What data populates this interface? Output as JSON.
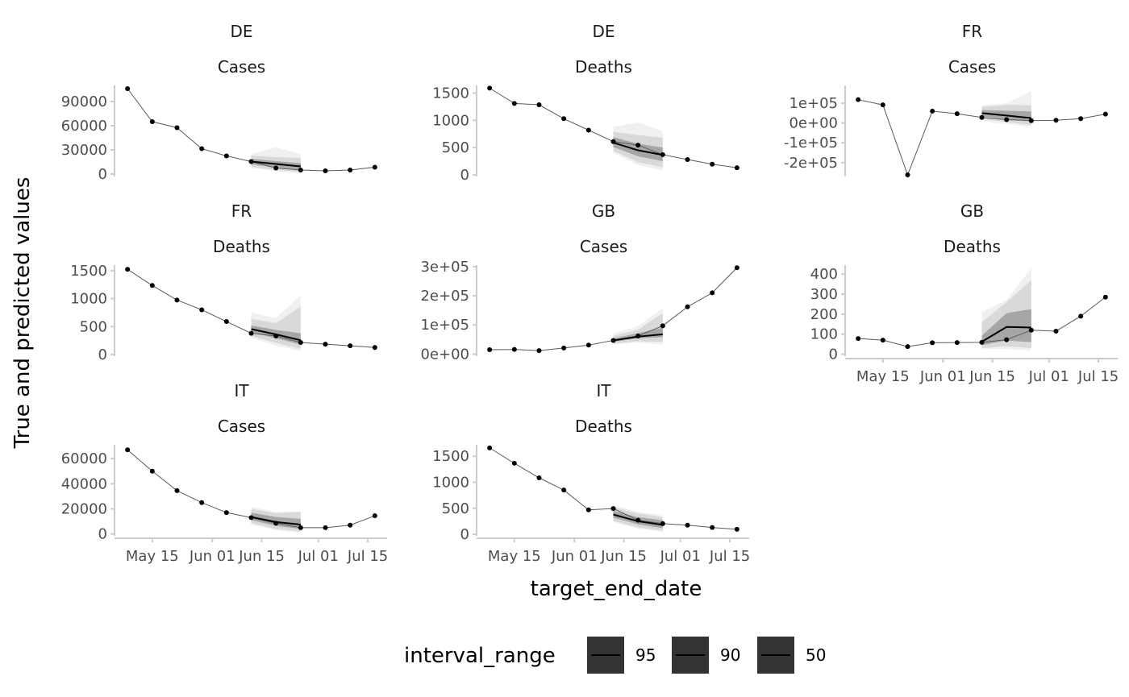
{
  "chart_data": {
    "type": "line",
    "facet_by": [
      "location",
      "target_variable"
    ],
    "xlabel": "target_end_date",
    "ylabel": "True and predicted values",
    "x_ticks": [
      "May 15",
      "Jun 01",
      "Jun 15",
      "Jul 01",
      "Jul 15"
    ],
    "legend": {
      "title": "interval_range",
      "position": "bottom",
      "entries": [
        "95",
        "90",
        "50"
      ],
      "band_colors": [
        "#f0f0f0",
        "#d9d9d9",
        "#a6a6a6"
      ]
    },
    "x_dates": [
      "2021-05-08",
      "2021-05-15",
      "2021-05-22",
      "2021-05-29",
      "2021-06-05",
      "2021-06-12",
      "2021-06-19",
      "2021-06-26",
      "2021-07-03",
      "2021-07-10",
      "2021-07-17"
    ],
    "panels": [
      {
        "location": "DE",
        "target": "Cases",
        "ylim": [
          -3000,
          110000
        ],
        "y_ticks": [
          0,
          30000,
          60000,
          90000
        ],
        "y_tick_labels": [
          "0",
          "30000",
          "60000",
          "90000"
        ],
        "observed": [
          106000,
          65000,
          57500,
          31500,
          22500,
          15500,
          7500,
          5000,
          4000,
          5000,
          8500
        ],
        "forecast": {
          "dates": [
            "2021-06-12",
            "2021-06-19",
            "2021-06-26"
          ],
          "median": [
            15500,
            12500,
            9500
          ],
          "q50": [
            [
              12000,
              19000
            ],
            [
              8500,
              16000
            ],
            [
              5500,
              13500
            ]
          ],
          "q90": [
            [
              9000,
              23000
            ],
            [
              5000,
              21000
            ],
            [
              2500,
              20000
            ]
          ],
          "q95": [
            [
              7500,
              25000
            ],
            [
              3500,
              33000
            ],
            [
              1000,
              25000
            ]
          ]
        }
      },
      {
        "location": "DE",
        "target": "Deaths",
        "ylim": [
          -30,
          1640
        ],
        "y_ticks": [
          0,
          500,
          1000,
          1500
        ],
        "y_tick_labels": [
          "0",
          "500",
          "1000",
          "1500"
        ],
        "observed": [
          1590,
          1310,
          1285,
          1030,
          820,
          610,
          545,
          370,
          280,
          195,
          130
        ],
        "forecast": {
          "dates": [
            "2021-06-12",
            "2021-06-19",
            "2021-06-26"
          ],
          "median": [
            590,
            450,
            365
          ],
          "q50": [
            [
              510,
              690
            ],
            [
              340,
              570
            ],
            [
              250,
              500
            ]
          ],
          "q90": [
            [
              440,
              790
            ],
            [
              230,
              730
            ],
            [
              140,
              680
            ]
          ],
          "q95": [
            [
              400,
              880
            ],
            [
              180,
              960
            ],
            [
              80,
              800
            ]
          ]
        }
      },
      {
        "location": "FR",
        "target": "Cases",
        "ylim": [
          -270000,
          190000
        ],
        "y_ticks": [
          -200000,
          -100000,
          0,
          100000
        ],
        "y_tick_labels": [
          "-2e+05",
          "-1e+05",
          "0e+00",
          "1e+05"
        ],
        "observed": [
          118000,
          92000,
          -262000,
          60000,
          47000,
          28000,
          17000,
          12000,
          14000,
          22000,
          45000
        ],
        "forecast": {
          "dates": [
            "2021-06-12",
            "2021-06-19",
            "2021-06-26"
          ],
          "median": [
            50000,
            38000,
            25000
          ],
          "q50": [
            [
              34000,
              66000
            ],
            [
              20000,
              62000
            ],
            [
              8000,
              58000
            ]
          ],
          "q90": [
            [
              20000,
              82000
            ],
            [
              5000,
              92000
            ],
            [
              -10000,
              90000
            ]
          ],
          "q95": [
            [
              10000,
              90000
            ],
            [
              -5000,
              100000
            ],
            [
              -20000,
              162000
            ]
          ]
        }
      },
      {
        "location": "FR",
        "target": "Deaths",
        "ylim": [
          -30,
          1600
        ],
        "y_ticks": [
          0,
          500,
          1000,
          1500
        ],
        "y_tick_labels": [
          "0",
          "500",
          "1000",
          "1500"
        ],
        "observed": [
          1525,
          1235,
          975,
          800,
          590,
          380,
          330,
          215,
          185,
          155,
          125
        ],
        "forecast": {
          "dates": [
            "2021-06-12",
            "2021-06-19",
            "2021-06-26"
          ],
          "median": [
            455,
            360,
            255
          ],
          "q50": [
            [
              400,
              520
            ],
            [
              290,
              440
            ],
            [
              180,
              380
            ]
          ],
          "q90": [
            [
              330,
              640
            ],
            [
              210,
              560
            ],
            [
              100,
              860
            ]
          ],
          "q95": [
            [
              300,
              750
            ],
            [
              160,
              650
            ],
            [
              60,
              1060
            ]
          ]
        }
      },
      {
        "location": "GB",
        "target": "Cases",
        "ylim": [
          -7000,
          305000
        ],
        "y_ticks": [
          0,
          100000,
          200000,
          300000
        ],
        "y_tick_labels": [
          "0e+00",
          "1e+05",
          "2e+05",
          "3e+05"
        ],
        "observed": [
          15000,
          16000,
          12000,
          21000,
          31000,
          47000,
          62000,
          97000,
          162000,
          210000,
          296000
        ],
        "forecast": {
          "dates": [
            "2021-06-12",
            "2021-06-19",
            "2021-06-26"
          ],
          "median": [
            47000,
            60000,
            68000
          ],
          "q50": [
            [
              42000,
              53000
            ],
            [
              54000,
              72000
            ],
            [
              58000,
              90000
            ]
          ],
          "q90": [
            [
              36000,
              62000
            ],
            [
              44000,
              84000
            ],
            [
              42000,
              140000
            ]
          ],
          "q95": [
            [
              33000,
              70000
            ],
            [
              40000,
              96000
            ],
            [
              32000,
              158000
            ]
          ]
        }
      },
      {
        "location": "GB",
        "target": "Deaths",
        "ylim": [
          -10,
          445
        ],
        "y_ticks": [
          0,
          100,
          200,
          300,
          400
        ],
        "y_tick_labels": [
          "0",
          "100",
          "200",
          "300",
          "400"
        ],
        "observed": [
          78,
          70,
          38,
          57,
          58,
          59,
          72,
          120,
          115,
          190,
          285
        ],
        "forecast": {
          "dates": [
            "2021-06-12",
            "2021-06-19",
            "2021-06-26"
          ],
          "median": [
            62,
            136,
            133
          ],
          "q50": [
            [
              45,
              92
            ],
            [
              68,
              205
            ],
            [
              60,
              225
            ]
          ],
          "q90": [
            [
              30,
              160
            ],
            [
              40,
              260
            ],
            [
              30,
              370
            ]
          ],
          "q95": [
            [
              25,
              210
            ],
            [
              25,
              270
            ],
            [
              20,
              430
            ]
          ]
        }
      },
      {
        "location": "IT",
        "target": "Cases",
        "ylim": [
          -1500,
          71000
        ],
        "y_ticks": [
          0,
          20000,
          40000,
          60000
        ],
        "y_tick_labels": [
          "0",
          "20000",
          "40000",
          "60000"
        ],
        "observed": [
          67000,
          50000,
          34500,
          25000,
          17000,
          13000,
          8500,
          5000,
          5000,
          7000,
          14500
        ],
        "forecast": {
          "dates": [
            "2021-06-12",
            "2021-06-19",
            "2021-06-26"
          ],
          "median": [
            13500,
            9500,
            7500
          ],
          "q50": [
            [
              11000,
              17000
            ],
            [
              6500,
              13500
            ],
            [
              4000,
              12000
            ]
          ],
          "q90": [
            [
              8500,
              20000
            ],
            [
              4000,
              16500
            ],
            [
              2000,
              17500
            ]
          ],
          "q95": [
            [
              7500,
              21500
            ],
            [
              3000,
              17500
            ],
            [
              1000,
              18000
            ]
          ]
        }
      },
      {
        "location": "IT",
        "target": "Deaths",
        "ylim": [
          -30,
          1720
        ],
        "y_ticks": [
          0,
          500,
          1000,
          1500
        ],
        "y_tick_labels": [
          "0",
          "500",
          "1000",
          "1500"
        ],
        "observed": [
          1660,
          1365,
          1085,
          850,
          470,
          495,
          270,
          205,
          175,
          130,
          95
        ],
        "forecast": {
          "dates": [
            "2021-06-12",
            "2021-06-19",
            "2021-06-26"
          ],
          "median": [
            380,
            250,
            180
          ],
          "q50": [
            [
              320,
              450
            ],
            [
              190,
              330
            ],
            [
              120,
              270
            ]
          ],
          "q90": [
            [
              260,
              520
            ],
            [
              130,
              400
            ],
            [
              70,
              330
            ]
          ],
          "q95": [
            [
              240,
              560
            ],
            [
              110,
              430
            ],
            [
              50,
              360
            ]
          ]
        }
      }
    ]
  }
}
